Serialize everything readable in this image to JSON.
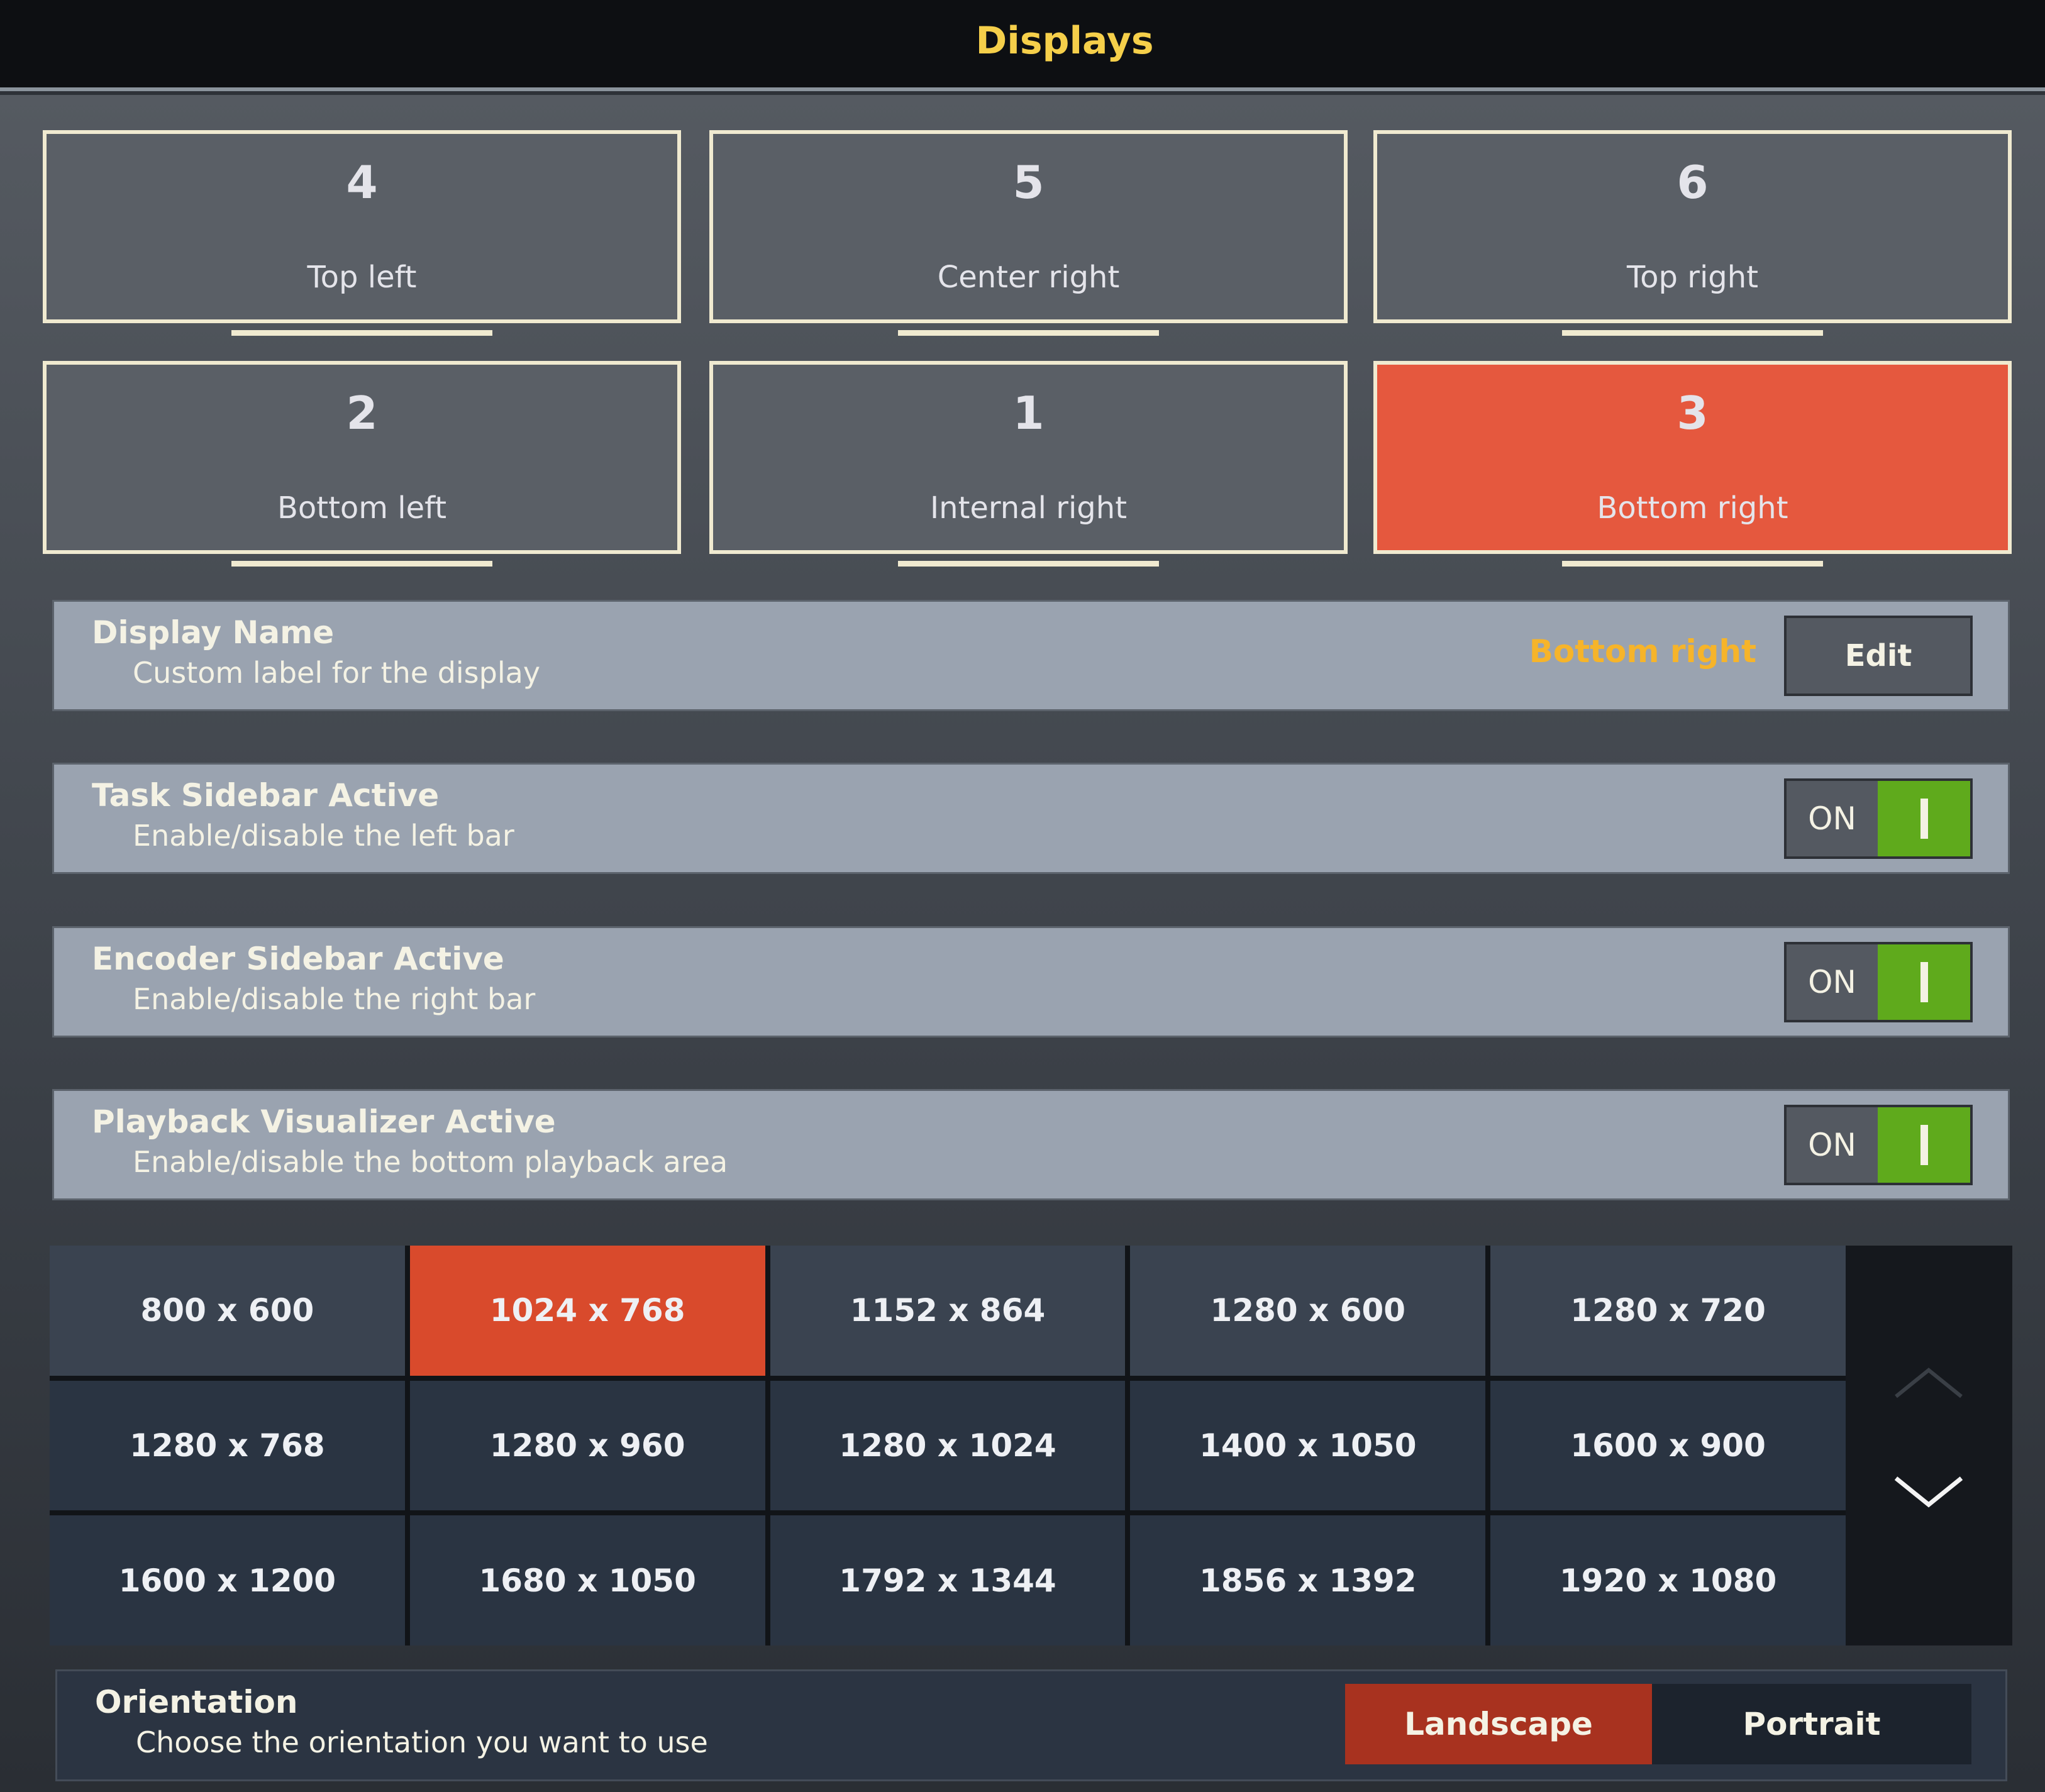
{
  "header": {
    "title": "Displays"
  },
  "displays": [
    {
      "number": "4",
      "label": "Top left",
      "selected": false
    },
    {
      "number": "5",
      "label": "Center right",
      "selected": false
    },
    {
      "number": "6",
      "label": "Top right",
      "selected": false
    },
    {
      "number": "2",
      "label": "Bottom left",
      "selected": false
    },
    {
      "number": "1",
      "label": "Internal right",
      "selected": false
    },
    {
      "number": "3",
      "label": "Bottom right",
      "selected": true
    }
  ],
  "display_name": {
    "title": "Display Name",
    "subtitle": "Custom label for the display",
    "value": "Bottom right",
    "edit_label": "Edit"
  },
  "toggles": [
    {
      "title": "Task Sidebar Active",
      "subtitle": "Enable/disable the left bar",
      "state": "ON"
    },
    {
      "title": "Encoder Sidebar Active",
      "subtitle": "Enable/disable the right bar",
      "state": "ON"
    },
    {
      "title": "Playback Visualizer Active",
      "subtitle": "Enable/disable the bottom playback area",
      "state": "ON"
    }
  ],
  "resolutions": [
    "800 x 600",
    "1024 x 768",
    "1152 x 864",
    "1280 x 600",
    "1280 x 720",
    "1280 x 768",
    "1280 x 960",
    "1280 x 1024",
    "1400 x 1050",
    "1600 x 900",
    "1600 x 1200",
    "1680 x 1050",
    "1792 x 1344",
    "1856 x 1392",
    "1920 x 1080"
  ],
  "selected_resolution": "1024 x 768",
  "orientation": {
    "title": "Orientation",
    "subtitle": "Choose the orientation you want to use",
    "options": [
      "Landscape",
      "Portrait"
    ],
    "selected": "Landscape"
  },
  "colors": {
    "accent": "#e5583e",
    "toggle_on": "#5faa1c",
    "title": "#f5cf4a",
    "value": "#f6b42a"
  }
}
